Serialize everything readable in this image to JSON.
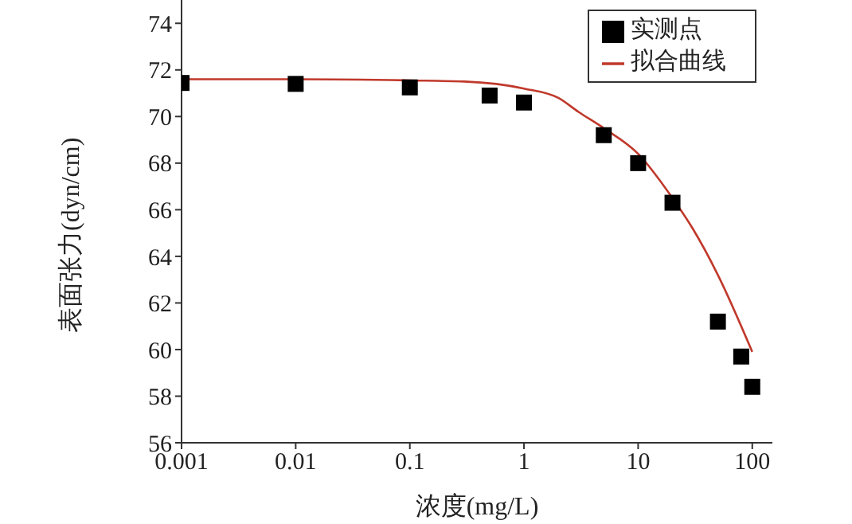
{
  "chart_data": {
    "type": "scatter",
    "xlabel": "浓度(mg/L)",
    "ylabel": "表面张力(dyn/cm)",
    "log": "x",
    "xlim": [
      0.001,
      150
    ],
    "xticks": [
      0.001,
      0.01,
      0.1,
      1,
      10,
      100
    ],
    "ylim": [
      56,
      75
    ],
    "yticks": [
      56,
      58,
      60,
      62,
      64,
      66,
      68,
      70,
      72,
      74
    ],
    "legend": "top right",
    "grid": false,
    "series": [
      {
        "name": "实测点",
        "marker": "square",
        "color": "#000000",
        "x": [
          0.001,
          0.01,
          0.1,
          0.5,
          1,
          5,
          10,
          20,
          50,
          80,
          100
        ],
        "values": [
          71.44,
          71.4,
          71.25,
          70.9,
          70.6,
          69.2,
          68.0,
          66.3,
          61.2,
          59.7,
          58.4
        ]
      },
      {
        "name": "拟合曲线",
        "type": "line",
        "marker": "none",
        "color": "#c0392b",
        "x": [
          0.001,
          0.01,
          0.1,
          0.3,
          1,
          2,
          3,
          5,
          10,
          20,
          30,
          50,
          100
        ],
        "values": [
          71.6,
          71.6,
          71.55,
          71.5,
          71.2,
          70.8,
          70.2,
          69.5,
          68.4,
          66.5,
          65.2,
          63.2,
          59.9
        ]
      }
    ]
  }
}
